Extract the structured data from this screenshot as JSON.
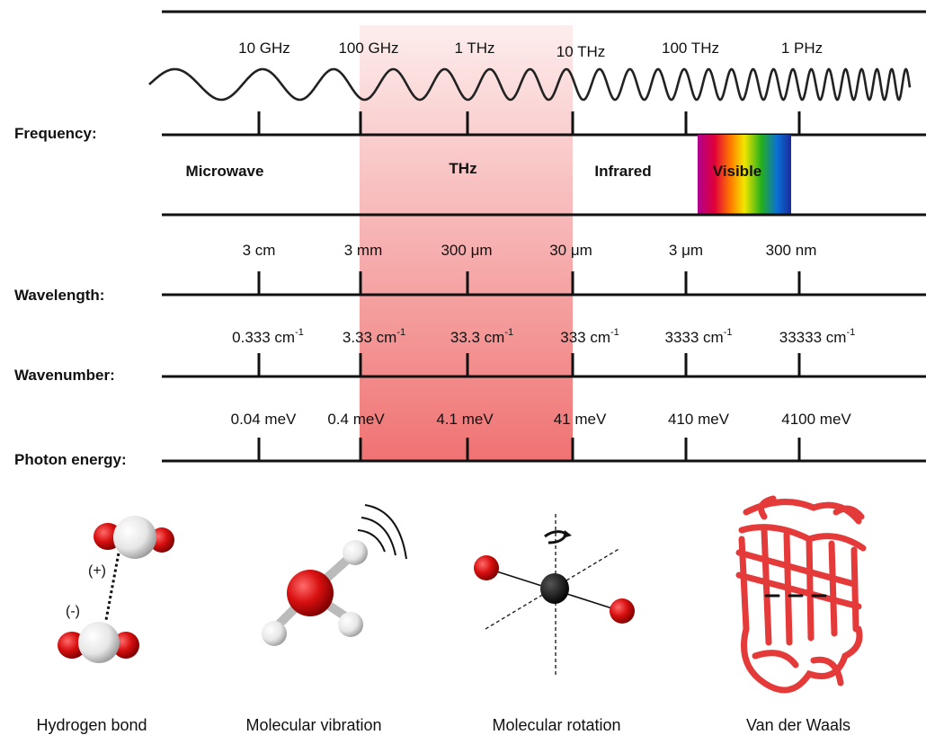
{
  "rows": {
    "frequency": "Frequency:",
    "wavelength": "Wavelength:",
    "wavenumber": "Wavenumber:",
    "energy": "Photon energy:"
  },
  "frequency_ticks": [
    "10 GHz",
    "100 GHz",
    "1 THz",
    "10 THz",
    "100 THz",
    "1 PHz"
  ],
  "bands": [
    "Microwave",
    "THz",
    "Infrared",
    "Visible"
  ],
  "wavelength_ticks": [
    "3 cm",
    "3 mm",
    "300 μm",
    "30 μm",
    "3 μm",
    "300 nm"
  ],
  "wavenumber_ticks": [
    {
      "value": "0.333 cm",
      "exp": "-1"
    },
    {
      "value": "3.33 cm",
      "exp": "-1"
    },
    {
      "value": "33.3 cm",
      "exp": "-1"
    },
    {
      "value": "333 cm",
      "exp": "-1"
    },
    {
      "value": "3333 cm",
      "exp": "-1"
    },
    {
      "value": "33333 cm",
      "exp": "-1"
    }
  ],
  "energy_ticks": [
    "0.04 meV",
    "0.4 meV",
    "4.1 meV",
    "41 meV",
    "410 meV",
    "4100 meV"
  ],
  "interactions": {
    "hbond": {
      "caption": "Hydrogen bond",
      "plus": "(+)",
      "minus": "(-)"
    },
    "vibration": {
      "caption": "Molecular vibration"
    },
    "rotation": {
      "caption": "Molecular rotation"
    },
    "vdw": {
      "caption": "Van der Waals"
    }
  },
  "colors": {
    "thz_band": "#f08080",
    "atom_red": "#d01010",
    "atom_white": "#f2f2f2",
    "protein": "#e83a3a"
  }
}
